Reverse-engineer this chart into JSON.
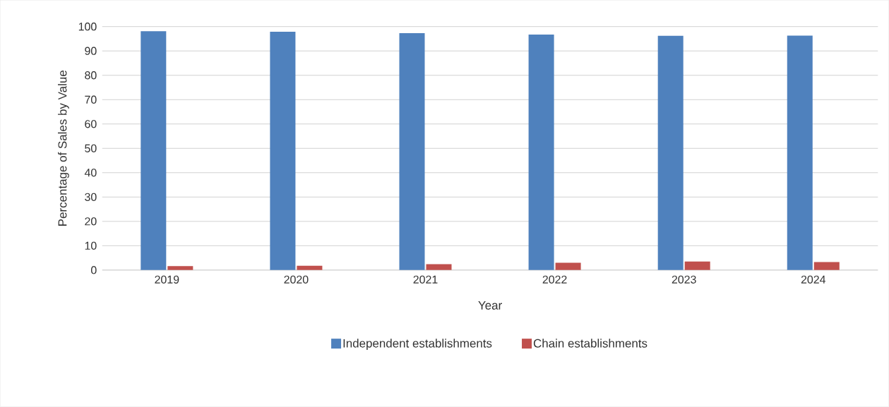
{
  "chart_data": {
    "type": "bar",
    "xlabel": "Year",
    "ylabel": "Percentage of Sales by Value",
    "categories": [
      "2019",
      "2020",
      "2021",
      "2022",
      "2023",
      "2024"
    ],
    "series": [
      {
        "name": "Independent establishments",
        "color": "#4f81bd",
        "values": [
          98.1,
          97.9,
          97.3,
          96.7,
          96.2,
          96.3
        ]
      },
      {
        "name": "Chain establishments",
        "color": "#c0504d",
        "values": [
          1.6,
          1.8,
          2.4,
          3.0,
          3.5,
          3.3
        ]
      }
    ],
    "ylim": [
      0,
      100
    ],
    "yticks": [
      0,
      10,
      20,
      30,
      40,
      50,
      60,
      70,
      80,
      90,
      100
    ],
    "grid": "y",
    "legend": "bottom"
  }
}
